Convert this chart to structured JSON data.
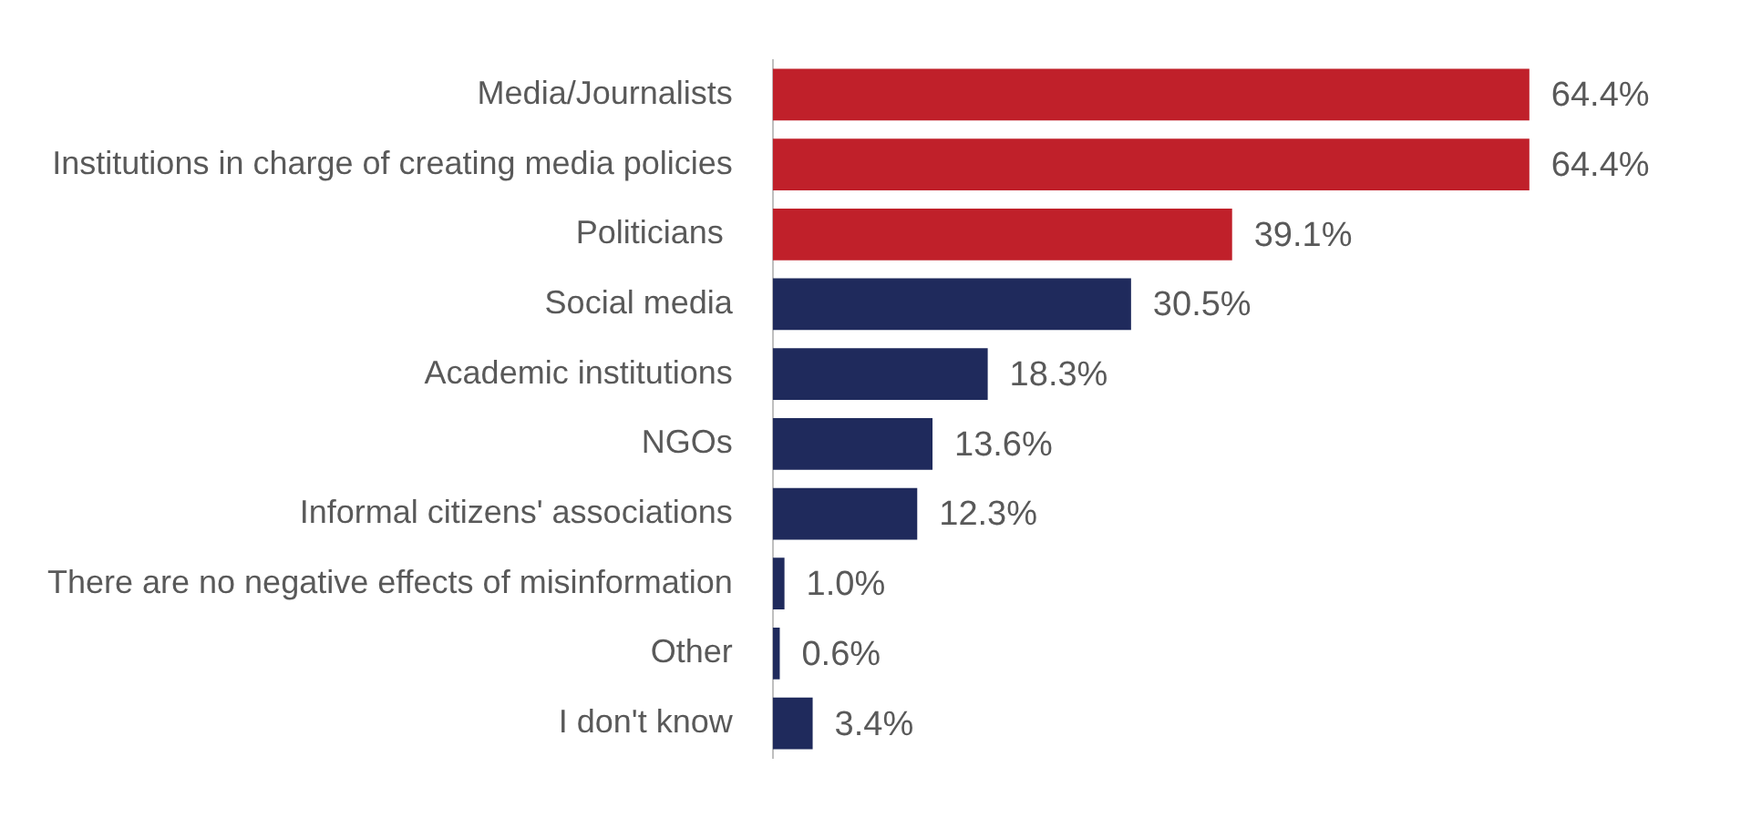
{
  "chart_data": {
    "type": "bar",
    "orientation": "horizontal",
    "categories": [
      "Media/Journalists",
      "Institutions in charge of creating media policies",
      "Politicians ",
      "Social media",
      "Academic institutions",
      "NGOs",
      "Informal citizens' associations",
      "There are no negative effects of misinformation",
      "Other",
      "I don't know"
    ],
    "values": [
      64.4,
      64.4,
      39.1,
      30.5,
      18.3,
      13.6,
      12.3,
      1.0,
      0.6,
      3.4
    ],
    "colors": [
      "#c0202a",
      "#c0202a",
      "#c0202a",
      "#1f2a5c",
      "#1f2a5c",
      "#1f2a5c",
      "#1f2a5c",
      "#1f2a5c",
      "#1f2a5c",
      "#1f2a5c"
    ],
    "value_labels": [
      "64.4%",
      "64.4%",
      "39.1%",
      "30.5%",
      "18.3%",
      "13.6%",
      "12.3%",
      "1.0%",
      "0.6%",
      "3.4%"
    ],
    "data_labels": true
  }
}
